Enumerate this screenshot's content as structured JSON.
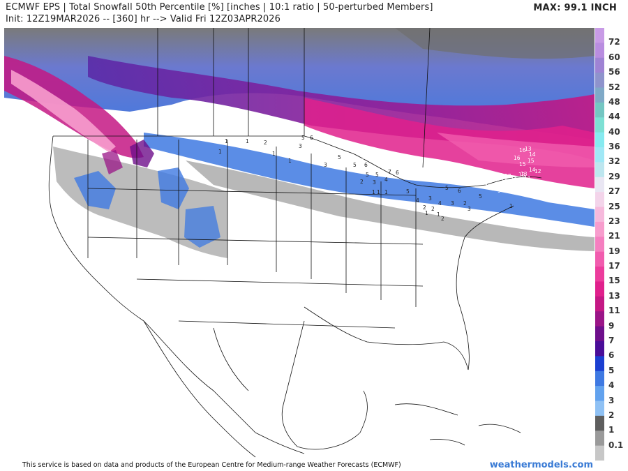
{
  "header": {
    "title": "ECMWF EPS | Total Snowfall 50th Percentile [%] [inches | 10:1 ratio | 50-perturbed Members]",
    "subtitle": "Init: 12Z19MAR2026 -- [360] hr --> Valid Fri 12Z03APR2026",
    "max_label": "MAX: 99.1 INCH"
  },
  "colorbar": {
    "labels": [
      "72",
      "60",
      "56",
      "52",
      "48",
      "44",
      "40",
      "36",
      "32",
      "29",
      "27",
      "25",
      "23",
      "21",
      "19",
      "17",
      "15",
      "13",
      "11",
      "9",
      "7",
      "6",
      "5",
      "4",
      "3",
      "2",
      "1",
      "0.1"
    ],
    "colors": [
      "#c89be6",
      "#b98de0",
      "#9f83d4",
      "#8e93cc",
      "#7fa9c7",
      "#74c6c2",
      "#7de0d4",
      "#86eaf0",
      "#a0e8f6",
      "#bde6ef",
      "#e9e6f3",
      "#f3d4ea",
      "#f6b9dc",
      "#f79dcd",
      "#f57fc0",
      "#f15cae",
      "#ec3c9c",
      "#e0208c",
      "#c41884",
      "#9a1587",
      "#6e0f8b",
      "#4a0d98",
      "#1b3fd1",
      "#3e79e2",
      "#62a2ee",
      "#8fc1f4",
      "#5e5e5e",
      "#9a9a9a",
      "#c7c7c7"
    ]
  },
  "map_labels": [
    {
      "t": "1"
    },
    {
      "t": "1"
    },
    {
      "t": "2"
    },
    {
      "t": "1"
    },
    {
      "t": "3"
    },
    {
      "t": "5"
    },
    {
      "t": "6"
    },
    {
      "t": "1"
    },
    {
      "t": "1"
    },
    {
      "t": "10"
    },
    {
      "t": "9"
    },
    {
      "t": "12"
    },
    {
      "t": "13"
    },
    {
      "t": "5"
    },
    {
      "t": "3"
    },
    {
      "t": "5"
    },
    {
      "t": "6"
    },
    {
      "t": "9"
    },
    {
      "t": "7"
    },
    {
      "t": "6"
    },
    {
      "t": "5"
    },
    {
      "t": "5"
    },
    {
      "t": "4"
    },
    {
      "t": "3"
    },
    {
      "t": "2"
    },
    {
      "t": "1"
    },
    {
      "t": "1"
    },
    {
      "t": "1"
    },
    {
      "t": "5"
    },
    {
      "t": "6"
    },
    {
      "t": "4"
    },
    {
      "t": "3"
    },
    {
      "t": "2"
    },
    {
      "t": "5"
    },
    {
      "t": "1"
    },
    {
      "t": "1"
    },
    {
      "t": "2"
    },
    {
      "t": "3"
    },
    {
      "t": "15"
    },
    {
      "t": "18"
    },
    {
      "t": "12"
    },
    {
      "t": "19"
    },
    {
      "t": "15"
    },
    {
      "t": "17"
    },
    {
      "t": "12"
    },
    {
      "t": "11"
    },
    {
      "t": "9"
    },
    {
      "t": "10"
    },
    {
      "t": "14"
    },
    {
      "t": "12"
    },
    {
      "t": "13"
    },
    {
      "t": "11"
    },
    {
      "t": "16"
    },
    {
      "t": "15"
    },
    {
      "t": "13"
    },
    {
      "t": "14"
    },
    {
      "t": "15"
    },
    {
      "t": "16"
    },
    {
      "t": "14"
    },
    {
      "t": "13"
    },
    {
      "t": "12"
    },
    {
      "t": "1"
    },
    {
      "t": "4"
    },
    {
      "t": "5"
    },
    {
      "t": "3"
    },
    {
      "t": "2"
    },
    {
      "t": "2"
    }
  ],
  "footer": {
    "disclaimer": "This service is based on data and products of the European Centre for Medium-range Weather Forecasts (ECMWF)",
    "brand": "weathermodels.com"
  }
}
